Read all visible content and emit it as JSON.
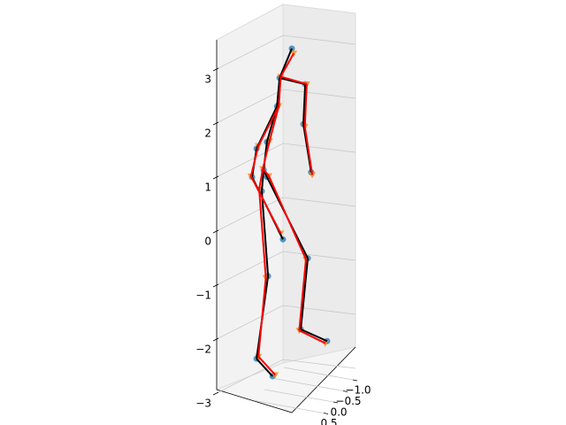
{
  "chart_data": {
    "type": "scatter3d",
    "series": [
      {
        "marker": "o",
        "color": "#1f77b4",
        "line_color": "#000000",
        "x": [
          -0.76,
          -0.81,
          -0.64,
          -0.95,
          -0.52,
          -0.67,
          0.43,
          0.24,
          0.95,
          -0.67,
          -0.4,
          -0.33,
          0,
          0.36,
          0.31,
          0.52,
          -0.95,
          -1.07,
          -0.24
        ],
        "z": [
          0.98,
          0.58,
          -0.96,
          -2.55,
          -2.79,
          0.87,
          -0.42,
          -1.77,
          -1.85,
          1.52,
          2.23,
          2.77,
          3.38,
          2.79,
          2.04,
          1.19,
          1.34,
          0.79,
          -0.2
        ]
      },
      {
        "marker": "v",
        "color": "#ff7f0e",
        "line_color": "#ff0000",
        "x": [
          -0.78,
          -0.88,
          -0.7,
          -0.9,
          -0.45,
          -0.62,
          0.38,
          0.2,
          0.9,
          -0.6,
          -0.35,
          -0.3,
          0.05,
          0.4,
          0.35,
          0.55,
          -0.9,
          -1.1,
          -0.3
        ],
        "z": [
          1.0,
          0.6,
          -1.0,
          -2.5,
          -2.75,
          0.9,
          -0.45,
          -1.8,
          -1.9,
          1.55,
          2.25,
          2.8,
          3.3,
          2.8,
          2.0,
          1.15,
          1.4,
          0.8,
          -0.1
        ]
      }
    ],
    "edges": [
      [
        0,
        1
      ],
      [
        1,
        2
      ],
      [
        2,
        3
      ],
      [
        3,
        4
      ],
      [
        0,
        5
      ],
      [
        5,
        6
      ],
      [
        6,
        7
      ],
      [
        7,
        8
      ],
      [
        0,
        9
      ],
      [
        9,
        10
      ],
      [
        10,
        11
      ],
      [
        11,
        12
      ],
      [
        11,
        13
      ],
      [
        13,
        14
      ],
      [
        14,
        15
      ],
      [
        10,
        16
      ],
      [
        16,
        17
      ],
      [
        17,
        18
      ]
    ],
    "ylim": [
      -1.2,
      0.6
    ],
    "yticks": [
      {
        "value": -1,
        "label": "−1.0"
      },
      {
        "value": -0.5,
        "label": "−0.5"
      },
      {
        "value": 0,
        "label": "0.0"
      },
      0.5
    ],
    "zlim": [
      -3.2,
      3.4
    ],
    "zticks": [
      {
        "value": -3,
        "label": "−3"
      },
      {
        "value": -2,
        "label": "−2"
      },
      {
        "value": -1,
        "label": "−1"
      },
      0,
      1,
      2,
      3
    ],
    "grid": true
  }
}
